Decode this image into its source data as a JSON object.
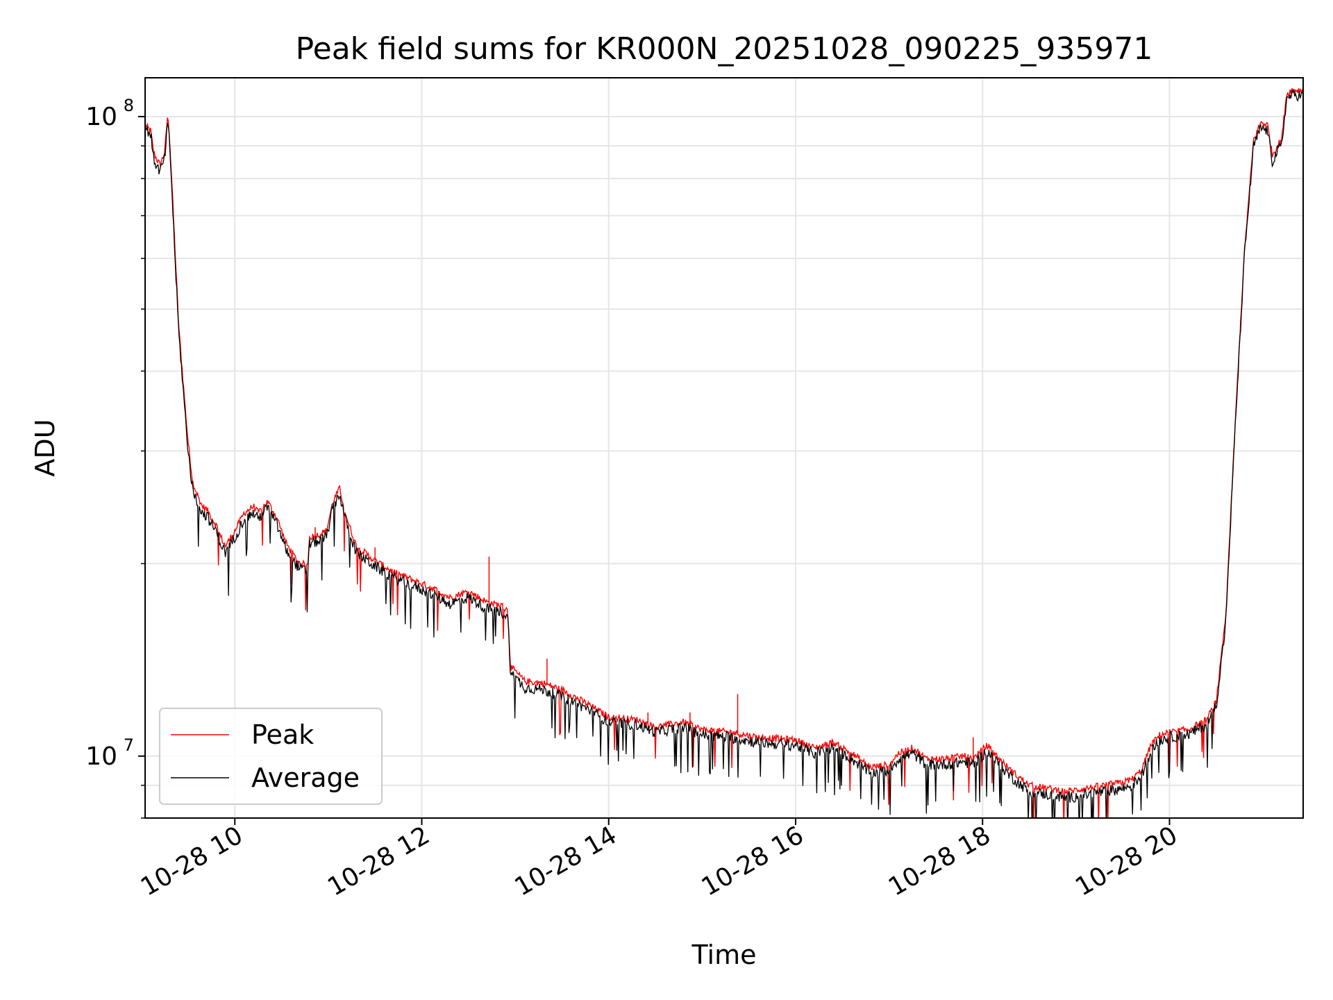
{
  "chart_data": {
    "type": "line",
    "title": "Peak field sums for KR000N_20251028_090225_935971",
    "xlabel": "Time",
    "ylabel": "ADU",
    "yscale": "log",
    "xlim_hours": [
      9.04,
      21.43
    ],
    "ylim": [
      8000000,
      115000000
    ],
    "x_ticks": [
      {
        "hour": 10,
        "label": "10-28 10"
      },
      {
        "hour": 12,
        "label": "10-28 12"
      },
      {
        "hour": 14,
        "label": "10-28 14"
      },
      {
        "hour": 16,
        "label": "10-28 16"
      },
      {
        "hour": 18,
        "label": "10-28 18"
      },
      {
        "hour": 20,
        "label": "10-28 20"
      }
    ],
    "y_major_ticks": [
      {
        "value": 10000000,
        "base": "10",
        "exp": "7"
      },
      {
        "value": 100000000,
        "base": "10",
        "exp": "8"
      }
    ],
    "y_minor_ticks": [
      8000000,
      9000000,
      20000000,
      30000000,
      40000000,
      50000000,
      60000000,
      70000000,
      80000000,
      90000000
    ],
    "grid": true,
    "legend_position": "lower-left",
    "series": [
      {
        "name": "Peak",
        "color": "#ff0000"
      },
      {
        "name": "Average",
        "color": "#000000"
      }
    ],
    "x_hours": [
      9.04,
      9.1,
      9.13,
      9.16,
      9.2,
      9.25,
      9.28,
      9.3,
      9.33,
      9.36,
      9.4,
      9.45,
      9.5,
      9.55,
      9.6,
      9.65,
      9.7,
      9.75,
      9.8,
      9.85,
      9.9,
      10.0,
      10.1,
      10.2,
      10.25,
      10.35,
      10.45,
      10.55,
      10.65,
      10.7,
      10.78,
      10.8,
      10.9,
      10.98,
      11.05,
      11.12,
      11.2,
      11.3,
      11.5,
      11.7,
      12.0,
      12.15,
      12.3,
      12.5,
      12.7,
      12.85,
      12.92,
      12.95,
      13.1,
      13.3,
      13.5,
      13.8,
      14.0,
      14.3,
      14.5,
      14.8,
      15.0,
      15.3,
      15.6,
      16.0,
      16.2,
      16.4,
      16.6,
      16.8,
      17.0,
      17.1,
      17.25,
      17.4,
      17.6,
      17.8,
      17.9,
      18.05,
      18.15,
      18.3,
      18.5,
      18.7,
      18.9,
      19.1,
      19.3,
      19.5,
      19.6,
      19.7,
      19.8,
      19.9,
      20.0,
      20.2,
      20.4,
      20.5,
      20.6,
      20.7,
      20.8,
      20.9,
      20.98,
      21.05,
      21.1,
      21.15,
      21.2,
      21.25,
      21.3,
      21.43
    ],
    "average": [
      96000000,
      94000000,
      86000000,
      84000000,
      82000000,
      86000000,
      97000000,
      92000000,
      75000000,
      60000000,
      46000000,
      37000000,
      30000000,
      26000000,
      25000000,
      24000000,
      23800000,
      23000000,
      22500000,
      21500000,
      20800000,
      22000000,
      23500000,
      24000000,
      23500000,
      24500000,
      23000000,
      21000000,
      20000000,
      19600000,
      19500000,
      21500000,
      21700000,
      22000000,
      24500000,
      25700000,
      23000000,
      20800000,
      19800000,
      19000000,
      18200000,
      17800000,
      17300000,
      17700000,
      17000000,
      16800000,
      16500000,
      13500000,
      12800000,
      12700000,
      12400000,
      11800000,
      11300000,
      11200000,
      10900000,
      11100000,
      10800000,
      10700000,
      10500000,
      10400000,
      10100000,
      10300000,
      9900000,
      9400000,
      9500000,
      9900000,
      10100000,
      9700000,
      9700000,
      9800000,
      9700000,
      10200000,
      9800000,
      9300000,
      8800000,
      8700000,
      8600000,
      8700000,
      8800000,
      8900000,
      9000000,
      9300000,
      10200000,
      10600000,
      10700000,
      10800000,
      11200000,
      12000000,
      16000000,
      32000000,
      60000000,
      90000000,
      96000000,
      95000000,
      85000000,
      88000000,
      90000000,
      106000000,
      108000000,
      108000000
    ],
    "peak": [
      97000000,
      95000000,
      88000000,
      86000000,
      84000000,
      88000000,
      100000000,
      94000000,
      77000000,
      62000000,
      47000000,
      38000000,
      31000000,
      26800000,
      25600000,
      24600000,
      24300000,
      23600000,
      23000000,
      22000000,
      21300000,
      22500000,
      24000000,
      24600000,
      24000000,
      25000000,
      23600000,
      21500000,
      20400000,
      20000000,
      19900000,
      22000000,
      22200000,
      22500000,
      25000000,
      26200000,
      23500000,
      21300000,
      20200000,
      19400000,
      18600000,
      18200000,
      17700000,
      18100000,
      17400000,
      17200000,
      16900000,
      13800000,
      13100000,
      13000000,
      12700000,
      12000000,
      11500000,
      11400000,
      11100000,
      11300000,
      11000000,
      10900000,
      10700000,
      10600000,
      10300000,
      10500000,
      10100000,
      9600000,
      9700000,
      10100000,
      10300000,
      9900000,
      9900000,
      10000000,
      9900000,
      10400000,
      10000000,
      9500000,
      9000000,
      8900000,
      8800000,
      8900000,
      9000000,
      9100000,
      9200000,
      9500000,
      10400000,
      10800000,
      10900000,
      11000000,
      11400000,
      12200000,
      16300000,
      32500000,
      61000000,
      92000000,
      98000000,
      97000000,
      87000000,
      90000000,
      92000000,
      108000000,
      110000000,
      110000000
    ],
    "peak_spikes": [
      {
        "hour": 12.72,
        "value": 20500000
      },
      {
        "hour": 13.34,
        "value": 14200000
      },
      {
        "hour": 15.38,
        "value": 12500000
      },
      {
        "hour": 14.42,
        "value": 11700000
      },
      {
        "hour": 14.87,
        "value": 11700000
      },
      {
        "hour": 10.86,
        "value": 22800000
      },
      {
        "hour": 11.5,
        "value": 21200000
      },
      {
        "hour": 17.9,
        "value": 10700000
      }
    ]
  }
}
